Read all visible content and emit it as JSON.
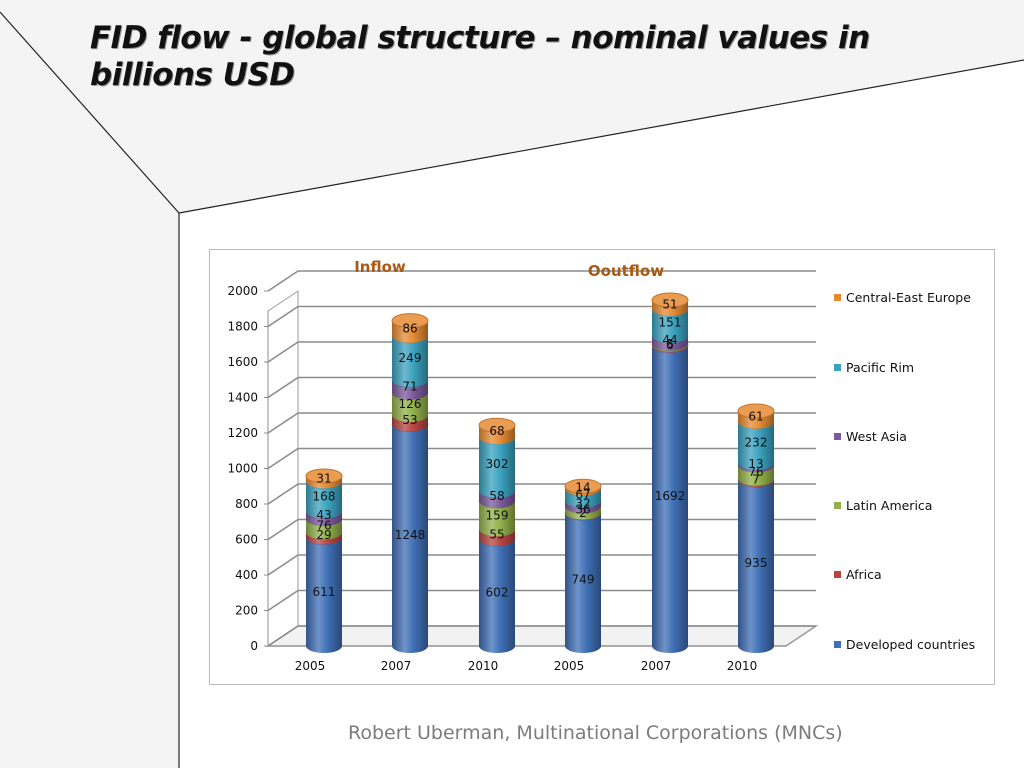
{
  "slide": {
    "title": "FID flow - global structure –  nominal values in billions USD",
    "footer": "Robert Uberman, Multinational Corporations (MNCs)"
  },
  "colors": {
    "developed": "#3f6fb5",
    "africa": "#b84440",
    "latin": "#92b04a",
    "west_asia": "#7b5a9c",
    "pacific": "#3ba2bf",
    "cee": "#e58a33",
    "group_label": "#a85a14"
  },
  "chart_data": {
    "type": "bar",
    "stacked": true,
    "three_d": true,
    "groups": [
      {
        "label": "Inflow",
        "categories": [
          "2005",
          "2007",
          "2010"
        ]
      },
      {
        "label": "Ooutflow",
        "categories": [
          "2005",
          "2007",
          "2010"
        ]
      }
    ],
    "categories": [
      "2005",
      "2007",
      "2010",
      "2005",
      "2007",
      "2010"
    ],
    "series": [
      {
        "name": "Developed countries",
        "color_key": "developed",
        "values": [
          611,
          1248,
          602,
          749,
          1692,
          935
        ]
      },
      {
        "name": "Africa",
        "color_key": "africa",
        "values": [
          29,
          53,
          55,
          2,
          6,
          7
        ]
      },
      {
        "name": "Latin America",
        "color_key": "latin",
        "values": [
          76,
          126,
          159,
          36,
          5,
          76
        ]
      },
      {
        "name": "West Asia",
        "color_key": "west_asia",
        "values": [
          43,
          71,
          58,
          32,
          44,
          13
        ]
      },
      {
        "name": "Pacific Rim",
        "color_key": "pacific",
        "values": [
          168,
          249,
          302,
          67,
          151,
          232
        ]
      },
      {
        "name": "Central-East Europe",
        "color_key": "cee",
        "values": [
          31,
          86,
          68,
          14,
          51,
          61
        ]
      }
    ],
    "ylim": [
      0,
      2000
    ],
    "yticks": [
      "0",
      "200",
      "400",
      "600",
      "800",
      "1000",
      "1200",
      "1400",
      "1600",
      "1800",
      "2000"
    ],
    "grid": true,
    "legend_position": "right",
    "legend_order": [
      "Central-East Europe",
      "Pacific Rim",
      "West Asia",
      "Latin America",
      "Africa",
      "Developed countries"
    ]
  }
}
